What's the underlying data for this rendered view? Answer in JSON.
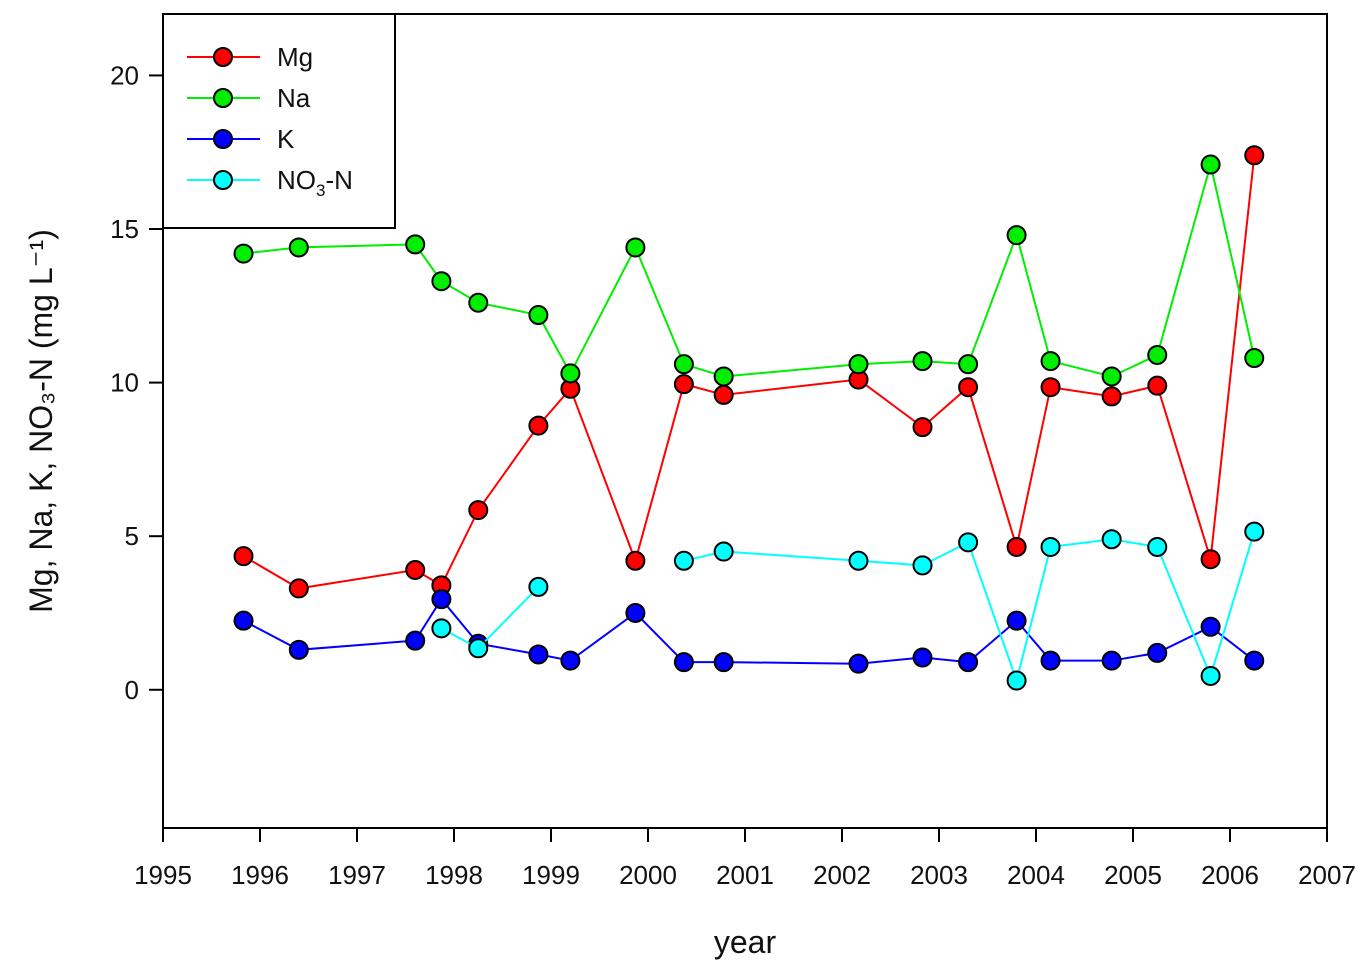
{
  "chart_data": {
    "type": "line",
    "xlabel": "year",
    "ylabel": "Mg, Na, K, NO₃-N (mg L⁻¹)",
    "xlim": [
      1995,
      2007
    ],
    "ylim": [
      -4.5,
      22
    ],
    "xticks": [
      "1995",
      "1996",
      "1997",
      "1998",
      "1999",
      "2000",
      "2001",
      "2002",
      "2003",
      "2004",
      "2005",
      "2006",
      "2007"
    ],
    "yticks": [
      "0",
      "5",
      "10",
      "15",
      "20"
    ],
    "legend_position": "top-left",
    "series": [
      {
        "name": "Mg",
        "color": "#ff0000",
        "points": [
          [
            1995.83,
            4.35
          ],
          [
            1996.4,
            3.3
          ],
          [
            1997.6,
            3.9
          ],
          [
            1997.87,
            3.4
          ],
          [
            1998.25,
            5.85
          ],
          [
            1998.87,
            8.6
          ],
          [
            1999.2,
            9.8
          ],
          [
            1999.87,
            4.2
          ],
          [
            2000.37,
            9.95
          ],
          [
            2000.78,
            9.6
          ],
          [
            2002.17,
            10.1
          ],
          [
            2002.83,
            8.55
          ],
          [
            2003.3,
            9.85
          ],
          [
            2003.8,
            4.65
          ],
          [
            2004.15,
            9.85
          ],
          [
            2004.78,
            9.55
          ],
          [
            2005.25,
            9.9
          ],
          [
            2005.8,
            4.25
          ],
          [
            2006.25,
            17.4
          ]
        ]
      },
      {
        "name": "Na",
        "color": "#00ee00",
        "points": [
          [
            1995.83,
            14.2
          ],
          [
            1996.4,
            14.4
          ],
          [
            1997.6,
            14.5
          ],
          [
            1997.87,
            13.3
          ],
          [
            1998.25,
            12.6
          ],
          [
            1998.87,
            12.2
          ],
          [
            1999.2,
            10.3
          ],
          [
            1999.87,
            14.4
          ],
          [
            2000.37,
            10.6
          ],
          [
            2000.78,
            10.2
          ],
          [
            2002.17,
            10.6
          ],
          [
            2002.83,
            10.7
          ],
          [
            2003.3,
            10.6
          ],
          [
            2003.8,
            14.8
          ],
          [
            2004.15,
            10.7
          ],
          [
            2004.78,
            10.2
          ],
          [
            2005.25,
            10.9
          ],
          [
            2005.8,
            17.1
          ],
          [
            2006.25,
            10.8
          ]
        ]
      },
      {
        "name": "K",
        "color": "#0000ff",
        "points": [
          [
            1995.83,
            2.25
          ],
          [
            1996.4,
            1.3
          ],
          [
            1997.6,
            1.6
          ],
          [
            1997.87,
            2.95
          ],
          [
            1998.25,
            1.5
          ],
          [
            1998.87,
            1.15
          ],
          [
            1999.2,
            0.95
          ],
          [
            1999.87,
            2.5
          ],
          [
            2000.37,
            0.9
          ],
          [
            2000.78,
            0.9
          ],
          [
            2002.17,
            0.85
          ],
          [
            2002.83,
            1.05
          ],
          [
            2003.3,
            0.9
          ],
          [
            2003.8,
            2.25
          ],
          [
            2004.15,
            0.95
          ],
          [
            2004.78,
            0.95
          ],
          [
            2005.25,
            1.2
          ],
          [
            2005.8,
            2.05
          ],
          [
            2006.25,
            0.95
          ]
        ]
      },
      {
        "name": "NO",
        "name_sub": "3",
        "name_suffix": "-N",
        "color": "#00ffff",
        "segments": [
          [
            [
              1997.87,
              2.0
            ],
            [
              1998.25,
              1.35
            ],
            [
              1998.87,
              3.35
            ]
          ],
          [
            [
              2000.37,
              4.2
            ],
            [
              2000.78,
              4.5
            ],
            [
              2002.17,
              4.2
            ],
            [
              2002.83,
              4.05
            ],
            [
              2003.3,
              4.8
            ],
            [
              2003.8,
              0.3
            ],
            [
              2004.15,
              4.65
            ],
            [
              2004.78,
              4.9
            ],
            [
              2005.25,
              4.65
            ],
            [
              2005.8,
              0.45
            ],
            [
              2006.25,
              5.15
            ]
          ]
        ]
      }
    ]
  }
}
